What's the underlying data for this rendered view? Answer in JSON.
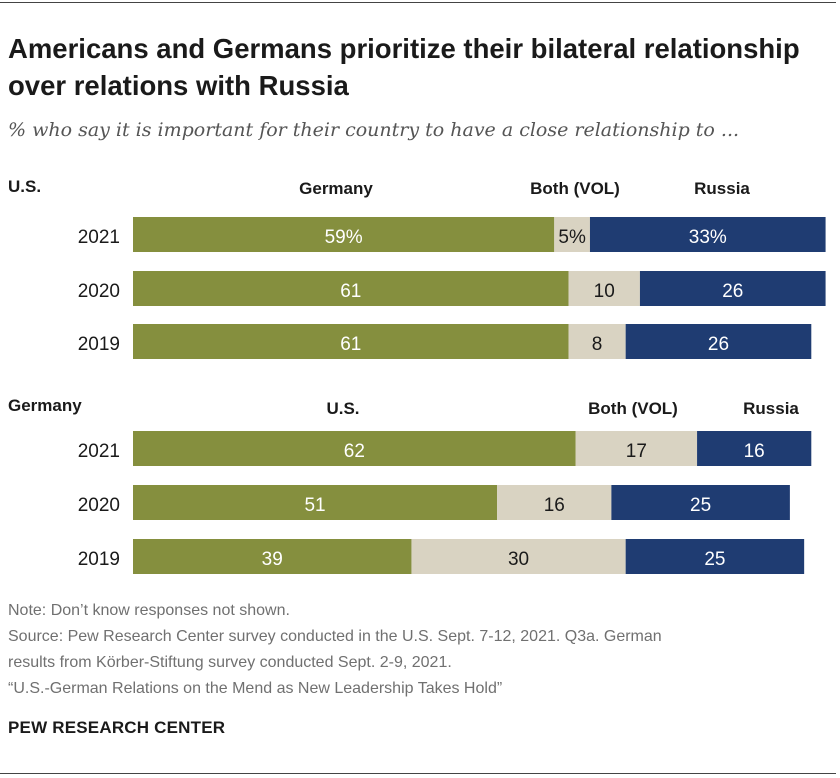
{
  "title": "Americans and Germans prioritize their bilateral relationship over relations with Russia",
  "subtitle": "% who say it is important for their country to have a close relationship to ...",
  "colors": {
    "first": "#858f3e",
    "both": "#d9d3c2",
    "russia": "#1f3c72"
  },
  "chart_data": [
    {
      "type": "bar",
      "stacked": true,
      "orientation": "horizontal",
      "group_label": "U.S.",
      "categories": [
        "2021",
        "2020",
        "2019"
      ],
      "series": [
        {
          "name": "Germany",
          "values": [
            59,
            61,
            61
          ],
          "labels": [
            "59%",
            "61",
            "61"
          ]
        },
        {
          "name": "Both (VOL)",
          "values": [
            5,
            10,
            8
          ],
          "labels": [
            "5%",
            "10",
            "8"
          ]
        },
        {
          "name": "Russia",
          "values": [
            33,
            26,
            26
          ],
          "labels": [
            "33%",
            "26",
            "26"
          ]
        }
      ]
    },
    {
      "type": "bar",
      "stacked": true,
      "orientation": "horizontal",
      "group_label": "Germany",
      "categories": [
        "2021",
        "2020",
        "2019"
      ],
      "series": [
        {
          "name": "U.S.",
          "values": [
            62,
            51,
            39
          ],
          "labels": [
            "62",
            "51",
            "39"
          ]
        },
        {
          "name": "Both (VOL)",
          "values": [
            17,
            16,
            30
          ],
          "labels": [
            "17",
            "16",
            "30"
          ]
        },
        {
          "name": "Russia",
          "values": [
            16,
            25,
            25
          ],
          "labels": [
            "16",
            "25",
            "25"
          ]
        }
      ]
    }
  ],
  "notes": [
    "Note: Don’t know responses not shown.",
    "Source: Pew Research Center survey conducted in the U.S. Sept. 7-12, 2021. Q3a. German",
    "results from Körber-Stiftung survey conducted Sept. 2-9, 2021.",
    "“U.S.-German Relations on the Mend as New Leadership Takes Hold”"
  ],
  "brand": "PEW RESEARCH CENTER"
}
